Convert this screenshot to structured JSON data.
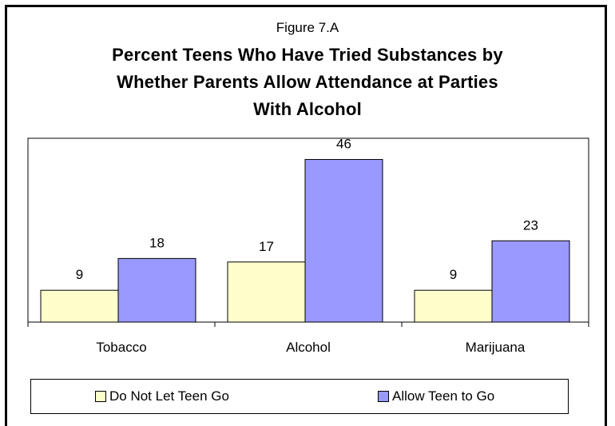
{
  "figure_label": "Figure 7.A",
  "title_lines": [
    "Percent Teens Who Have Tried Substances by",
    "Whether Parents Allow Attendance at Parties",
    "With Alcohol"
  ],
  "colors": {
    "series_0": "#FFFFCC",
    "series_1": "#9999FF",
    "axis": "#000000"
  },
  "chart_data": {
    "type": "bar",
    "title": "Percent Teens Who Have Tried Substances by Whether Parents Allow Attendance at Parties With Alcohol",
    "categories": [
      "Tobacco",
      "Alcohol",
      "Marijuana"
    ],
    "series": [
      {
        "name": "Do Not Let Teen Go",
        "values": [
          9,
          17,
          9
        ]
      },
      {
        "name": "Allow  Teen to Go",
        "values": [
          18,
          46,
          23
        ]
      }
    ],
    "ylim": [
      0,
      52
    ],
    "grid": false,
    "legend": "bottom"
  }
}
